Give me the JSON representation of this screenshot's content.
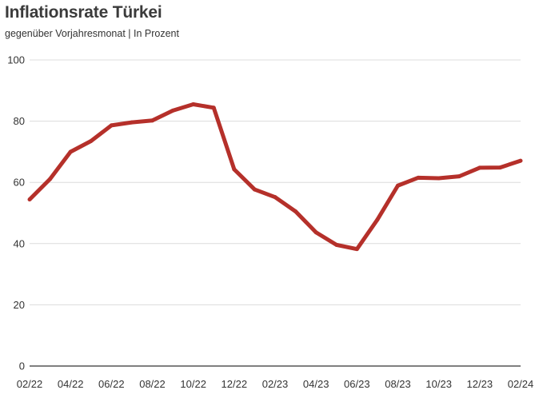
{
  "chart_data": {
    "type": "line",
    "title": "Inflationsrate Türkei",
    "subtitle": "gegenüber Vorjahresmonat  | In Prozent",
    "xlabel": "",
    "ylabel": "",
    "ylim": [
      0,
      100
    ],
    "yticks": [
      0,
      20,
      40,
      60,
      80,
      100
    ],
    "grid": true,
    "line_color": "#b5302a",
    "x_tick_labels": [
      "02/22",
      "04/22",
      "06/22",
      "08/22",
      "10/22",
      "12/22",
      "02/23",
      "04/23",
      "06/23",
      "08/23",
      "10/23",
      "12/23",
      "02/24"
    ],
    "x": [
      "02/22",
      "03/22",
      "04/22",
      "05/22",
      "06/22",
      "07/22",
      "08/22",
      "09/22",
      "10/22",
      "11/22",
      "12/22",
      "01/23",
      "02/23",
      "03/23",
      "04/23",
      "05/23",
      "06/23",
      "07/23",
      "08/23",
      "09/23",
      "10/23",
      "11/23",
      "12/23",
      "01/24",
      "02/24"
    ],
    "series": [
      {
        "values": [
          54.4,
          61.1,
          69.97,
          73.5,
          78.62,
          79.6,
          80.21,
          83.45,
          85.51,
          84.39,
          64.27,
          57.68,
          55.18,
          50.51,
          43.68,
          39.59,
          38.21,
          47.83,
          58.94,
          61.53,
          61.36,
          61.98,
          64.77,
          64.86,
          67.07
        ]
      }
    ]
  }
}
